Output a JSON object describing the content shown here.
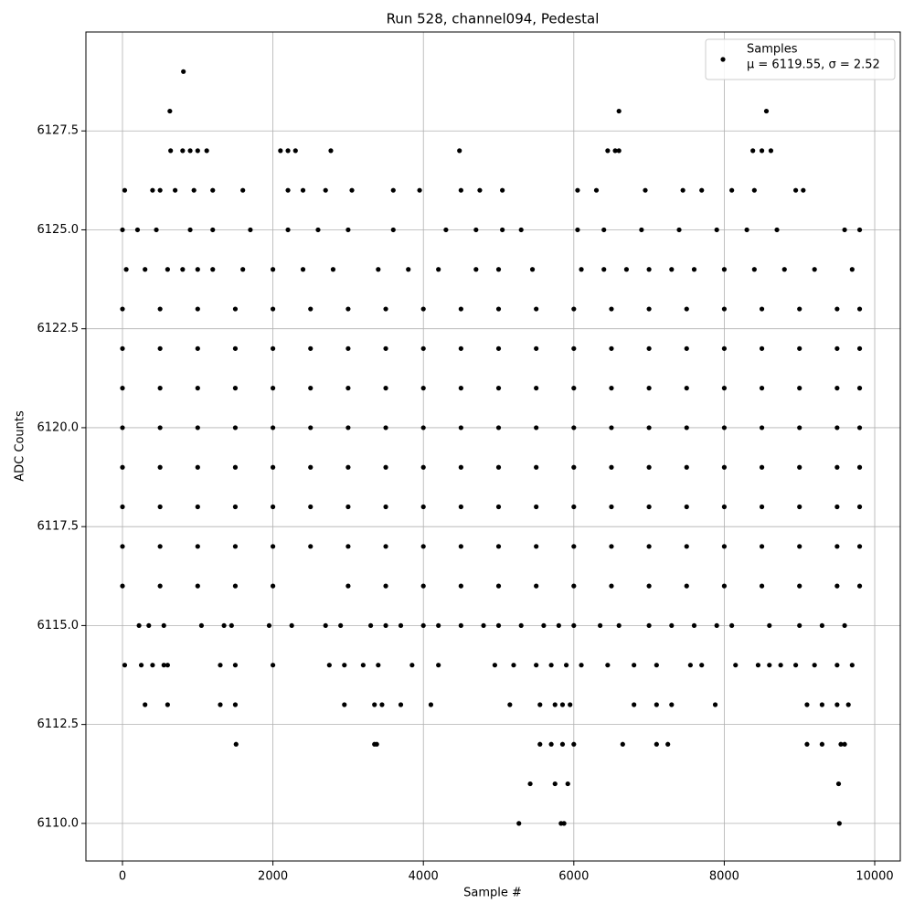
{
  "chart_data": {
    "type": "scatter",
    "title": "Run 528, channel094, Pedestal",
    "x_label": "Sample #",
    "y_label": "ADC Counts",
    "xlim": [
      -486,
      10340
    ],
    "ylim": [
      6109.05,
      6130
    ],
    "xticks": [
      0,
      2000,
      4000,
      6000,
      8000,
      10000
    ],
    "yticks": [
      {
        "value": 6110,
        "label": "6110.0"
      },
      6112.5,
      {
        "value": 6115,
        "label": "6115.0"
      },
      6117.5,
      {
        "value": 6120,
        "label": "6120.0"
      },
      6122.5,
      {
        "value": 6125,
        "label": "6125.0"
      },
      6127.5
    ],
    "grid": true,
    "legend": "upper right",
    "legend_note": "μ = 6119.55, σ = 2.52",
    "series": [
      {
        "name": "Samples",
        "color": "#000000",
        "x": [
          810,
          630,
          6600,
          8560,
          640,
          800,
          900,
          1000,
          1120,
          2100,
          2200,
          2300,
          2770,
          4480,
          6450,
          6550,
          6600,
          8380,
          8500,
          8620,
          30,
          400,
          500,
          700,
          950,
          1200,
          1600,
          2200,
          2400,
          2700,
          3050,
          3600,
          3950,
          4500,
          4750,
          5050,
          6050,
          6300,
          6950,
          7450,
          7700,
          8100,
          8400,
          8950,
          9050,
          0,
          200,
          450,
          900,
          1200,
          1700,
          2200,
          2600,
          3000,
          3600,
          4300,
          4700,
          5050,
          5300,
          6050,
          6400,
          6900,
          7400,
          7900,
          8300,
          8700,
          9600,
          9800,
          50,
          300,
          600,
          800,
          1000,
          1200,
          1600,
          2000,
          2400,
          2800,
          3400,
          3800,
          4200,
          4700,
          5000,
          5450,
          6100,
          6400,
          6700,
          7000,
          7300,
          7600,
          8000,
          8400,
          8800,
          9200,
          9700,
          0,
          500,
          1000,
          1500,
          2000,
          2500,
          3000,
          3500,
          4000,
          4500,
          5000,
          5500,
          6000,
          6500,
          7000,
          7500,
          8000,
          8500,
          9000,
          9500,
          9800,
          0,
          500,
          1000,
          1500,
          2000,
          2500,
          3000,
          3500,
          4000,
          4500,
          5000,
          5500,
          6000,
          6500,
          7000,
          7500,
          8000,
          8500,
          9000,
          9500,
          9800,
          0,
          500,
          1000,
          1500,
          2000,
          2500,
          3000,
          3500,
          4000,
          4500,
          5000,
          5500,
          6000,
          6500,
          7000,
          7500,
          8000,
          8500,
          9000,
          9500,
          9800,
          0,
          500,
          1000,
          1500,
          2000,
          2500,
          3000,
          3500,
          4000,
          4500,
          5000,
          5500,
          6000,
          6500,
          7000,
          7500,
          8000,
          8500,
          9000,
          9500,
          9800,
          0,
          500,
          1000,
          1500,
          2000,
          2500,
          3000,
          3500,
          4000,
          4500,
          5000,
          5500,
          6000,
          6500,
          7000,
          7500,
          8000,
          8500,
          9000,
          9500,
          9800,
          0,
          500,
          1000,
          1500,
          2000,
          2500,
          3000,
          3500,
          4000,
          4500,
          5000,
          5500,
          6000,
          6500,
          7000,
          7500,
          8000,
          8500,
          9000,
          9500,
          9800,
          0,
          500,
          1000,
          1500,
          2000,
          2500,
          3000,
          3500,
          4000,
          4500,
          5000,
          5500,
          6000,
          6500,
          7000,
          7500,
          8000,
          8500,
          9000,
          9500,
          9800,
          0,
          500,
          1000,
          1500,
          2000,
          3000,
          3500,
          4000,
          4500,
          5000,
          5500,
          6000,
          6500,
          7000,
          7500,
          8000,
          8500,
          9000,
          9500,
          9800,
          220,
          350,
          550,
          1050,
          1350,
          1450,
          1950,
          2250,
          2700,
          2900,
          3300,
          3500,
          3700,
          4000,
          4200,
          4500,
          4800,
          5000,
          5300,
          5600,
          5800,
          6000,
          6350,
          6600,
          7000,
          7300,
          7600,
          7900,
          8100,
          8600,
          9000,
          9300,
          9600,
          30,
          250,
          400,
          550,
          600,
          1300,
          1500,
          2000,
          2750,
          2950,
          3200,
          3400,
          3850,
          4200,
          4950,
          5200,
          5500,
          5700,
          5900,
          6100,
          6450,
          6800,
          7100,
          7550,
          7700,
          8150,
          8450,
          8600,
          8750,
          8950,
          9200,
          9500,
          9700,
          300,
          600,
          1300,
          1500,
          2950,
          3350,
          3450,
          3700,
          4100,
          5150,
          5550,
          5750,
          5850,
          5950,
          6800,
          7100,
          7300,
          7880,
          9100,
          9300,
          9500,
          9650,
          1510,
          3350,
          3380,
          5550,
          5700,
          5850,
          6000,
          6650,
          7100,
          7250,
          9100,
          9300,
          9550,
          9600,
          5420,
          5750,
          5920,
          9520,
          5270,
          5830,
          5870,
          9530
        ],
        "y": [
          6129,
          6128,
          6128,
          6128,
          6127,
          6127,
          6127,
          6127,
          6127,
          6127,
          6127,
          6127,
          6127,
          6127,
          6127,
          6127,
          6127,
          6127,
          6127,
          6127,
          6126,
          6126,
          6126,
          6126,
          6126,
          6126,
          6126,
          6126,
          6126,
          6126,
          6126,
          6126,
          6126,
          6126,
          6126,
          6126,
          6126,
          6126,
          6126,
          6126,
          6126,
          6126,
          6126,
          6126,
          6126,
          6125,
          6125,
          6125,
          6125,
          6125,
          6125,
          6125,
          6125,
          6125,
          6125,
          6125,
          6125,
          6125,
          6125,
          6125,
          6125,
          6125,
          6125,
          6125,
          6125,
          6125,
          6125,
          6125,
          6124,
          6124,
          6124,
          6124,
          6124,
          6124,
          6124,
          6124,
          6124,
          6124,
          6124,
          6124,
          6124,
          6124,
          6124,
          6124,
          6124,
          6124,
          6124,
          6124,
          6124,
          6124,
          6124,
          6124,
          6124,
          6124,
          6124,
          6123,
          6123,
          6123,
          6123,
          6123,
          6123,
          6123,
          6123,
          6123,
          6123,
          6123,
          6123,
          6123,
          6123,
          6123,
          6123,
          6123,
          6123,
          6123,
          6123,
          6123,
          6122,
          6122,
          6122,
          6122,
          6122,
          6122,
          6122,
          6122,
          6122,
          6122,
          6122,
          6122,
          6122,
          6122,
          6122,
          6122,
          6122,
          6122,
          6122,
          6122,
          6122,
          6121,
          6121,
          6121,
          6121,
          6121,
          6121,
          6121,
          6121,
          6121,
          6121,
          6121,
          6121,
          6121,
          6121,
          6121,
          6121,
          6121,
          6121,
          6121,
          6121,
          6121,
          6120,
          6120,
          6120,
          6120,
          6120,
          6120,
          6120,
          6120,
          6120,
          6120,
          6120,
          6120,
          6120,
          6120,
          6120,
          6120,
          6120,
          6120,
          6120,
          6120,
          6120,
          6119,
          6119,
          6119,
          6119,
          6119,
          6119,
          6119,
          6119,
          6119,
          6119,
          6119,
          6119,
          6119,
          6119,
          6119,
          6119,
          6119,
          6119,
          6119,
          6119,
          6119,
          6118,
          6118,
          6118,
          6118,
          6118,
          6118,
          6118,
          6118,
          6118,
          6118,
          6118,
          6118,
          6118,
          6118,
          6118,
          6118,
          6118,
          6118,
          6118,
          6118,
          6118,
          6117,
          6117,
          6117,
          6117,
          6117,
          6117,
          6117,
          6117,
          6117,
          6117,
          6117,
          6117,
          6117,
          6117,
          6117,
          6117,
          6117,
          6117,
          6117,
          6117,
          6117,
          6116,
          6116,
          6116,
          6116,
          6116,
          6116,
          6116,
          6116,
          6116,
          6116,
          6116,
          6116,
          6116,
          6116,
          6116,
          6116,
          6116,
          6116,
          6116,
          6116,
          6115,
          6115,
          6115,
          6115,
          6115,
          6115,
          6115,
          6115,
          6115,
          6115,
          6115,
          6115,
          6115,
          6115,
          6115,
          6115,
          6115,
          6115,
          6115,
          6115,
          6115,
          6115,
          6115,
          6115,
          6115,
          6115,
          6115,
          6115,
          6115,
          6115,
          6115,
          6115,
          6115,
          6114,
          6114,
          6114,
          6114,
          6114,
          6114,
          6114,
          6114,
          6114,
          6114,
          6114,
          6114,
          6114,
          6114,
          6114,
          6114,
          6114,
          6114,
          6114,
          6114,
          6114,
          6114,
          6114,
          6114,
          6114,
          6114,
          6114,
          6114,
          6114,
          6114,
          6114,
          6114,
          6114,
          6113,
          6113,
          6113,
          6113,
          6113,
          6113,
          6113,
          6113,
          6113,
          6113,
          6113,
          6113,
          6113,
          6113,
          6113,
          6113,
          6113,
          6113,
          6113,
          6113,
          6113,
          6113,
          6112,
          6112,
          6112,
          6112,
          6112,
          6112,
          6112,
          6112,
          6112,
          6112,
          6112,
          6112,
          6112,
          6112,
          6111,
          6111,
          6111,
          6111,
          6110,
          6110,
          6110,
          6110
        ]
      }
    ]
  }
}
